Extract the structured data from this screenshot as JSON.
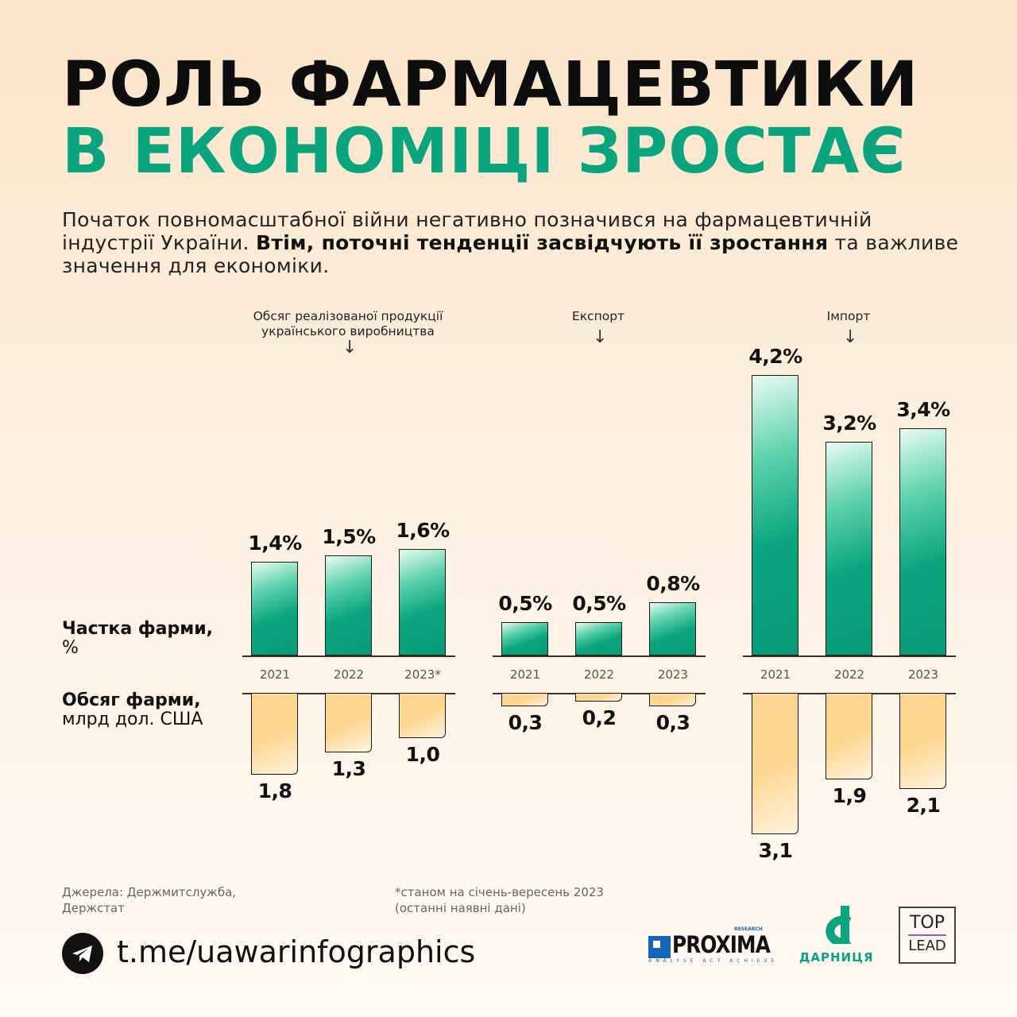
{
  "title_line1": "РОЛЬ ФАРМАЦЕВТИКИ",
  "title_line2": "В ЕКОНОМІЦІ ЗРОСТАЄ",
  "intro_plain1": "Початок повномасштабної війни негативно позначився на фармацевтичній індустрії України. ",
  "intro_bold": "Втім, поточні тенденції засвідчують її зростання",
  "intro_plain2": " та важливе значення для економіки.",
  "colors": {
    "green": "#0aa57f",
    "orange": "#fdd08a",
    "title": "#0d0d0d"
  },
  "chart_data": {
    "type": "bar",
    "row_labels": {
      "share_bold": "Частка фарми,",
      "share_unit": "%",
      "volume_bold": "Обсяг фарми,",
      "volume_unit": "млрд дол. США"
    },
    "groups": [
      {
        "name": "Обсяг реалізованої продукції українського виробництва",
        "categories": [
          "2021",
          "2022",
          "2023*"
        ],
        "share": [
          1.4,
          1.5,
          1.6
        ],
        "share_labels": [
          "1,4%",
          "1,5%",
          "1,6%"
        ],
        "volume": [
          1.8,
          1.3,
          1.0
        ],
        "volume_labels": [
          "1,8",
          "1,3",
          "1,0"
        ]
      },
      {
        "name": "Експорт",
        "categories": [
          "2021",
          "2022",
          "2023"
        ],
        "share": [
          0.5,
          0.5,
          0.8
        ],
        "share_labels": [
          "0,5%",
          "0,5%",
          "0,8%"
        ],
        "volume": [
          0.3,
          0.2,
          0.3
        ],
        "volume_labels": [
          "0,3",
          "0,2",
          "0,3"
        ]
      },
      {
        "name": "Імпорт",
        "categories": [
          "2021",
          "2022",
          "2023"
        ],
        "share": [
          4.2,
          3.2,
          3.4
        ],
        "share_labels": [
          "4,2%",
          "3,2%",
          "3,4%"
        ],
        "volume": [
          3.1,
          1.9,
          2.1
        ],
        "volume_labels": [
          "3,1",
          "1,9",
          "2,1"
        ]
      }
    ]
  },
  "sources_line1": "Джерела: Держмитслужба,",
  "sources_line2": "Держстат",
  "note_line1": "*станом на січень-вересень 2023",
  "note_line2": "(останні наявні дані)",
  "telegram_link": "t.me/uawarinfographics",
  "logos": {
    "proxima": "PROXIMA",
    "proxima_sup": "RESEARCH",
    "proxima_tag": "ANALYSE ACT ACHIEVE",
    "darnitsa": "ДАРНИЦЯ",
    "toplead_1": "TOP",
    "toplead_2": "LEAD"
  }
}
